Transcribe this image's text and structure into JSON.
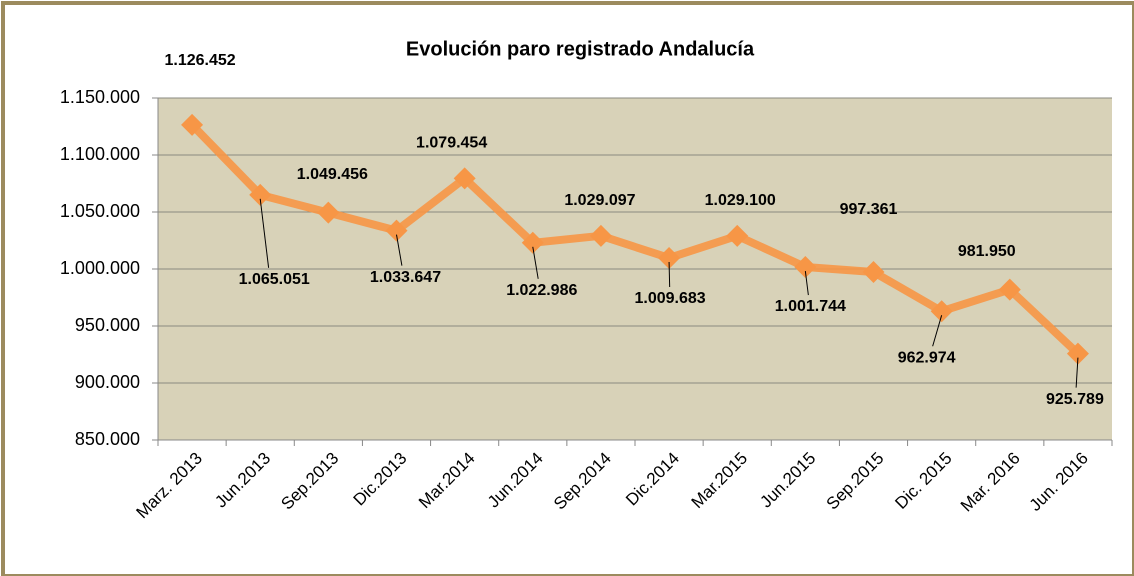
{
  "chart_data": {
    "type": "line",
    "title": "Evolución paro registrado Andalucía",
    "categories": [
      "Marz. 2013",
      "Jun.2013",
      "Sep.2013",
      "Dic.2013",
      "Mar.2014",
      "Jun.2014",
      "Sep.2014",
      "Dic.2014",
      "Mar.2015",
      "Jun.2015",
      "Sep.2015",
      "Dic. 2015",
      "Mar. 2016",
      "Jun. 2016"
    ],
    "values": [
      1126452,
      1065051,
      1049456,
      1033647,
      1079454,
      1022986,
      1029097,
      1009683,
      1029100,
      1001744,
      997361,
      962974,
      981950,
      925789
    ],
    "value_labels": [
      "1.126.452",
      "1.065.051",
      "1.049.456",
      "1.033.647",
      "1.079.454",
      "1.022.986",
      "1.029.097",
      "1.009.683",
      "1.029.100",
      "1.001.744",
      "997.361",
      "962.974",
      "981.950",
      "925.789"
    ],
    "color": "#f79646",
    "ylim": [
      850000,
      1150000
    ],
    "yticks": [
      {
        "value": 850000,
        "label": "850.000"
      },
      {
        "value": 900000,
        "label": "900.000"
      },
      {
        "value": 950000,
        "label": "950.000"
      },
      {
        "value": 1000000,
        "label": "1.000.000"
      },
      {
        "value": 1050000,
        "label": "1.050.000"
      },
      {
        "value": 1100000,
        "label": "1.100.000"
      },
      {
        "value": 1150000,
        "label": "1.150.000"
      }
    ],
    "grid": true
  }
}
